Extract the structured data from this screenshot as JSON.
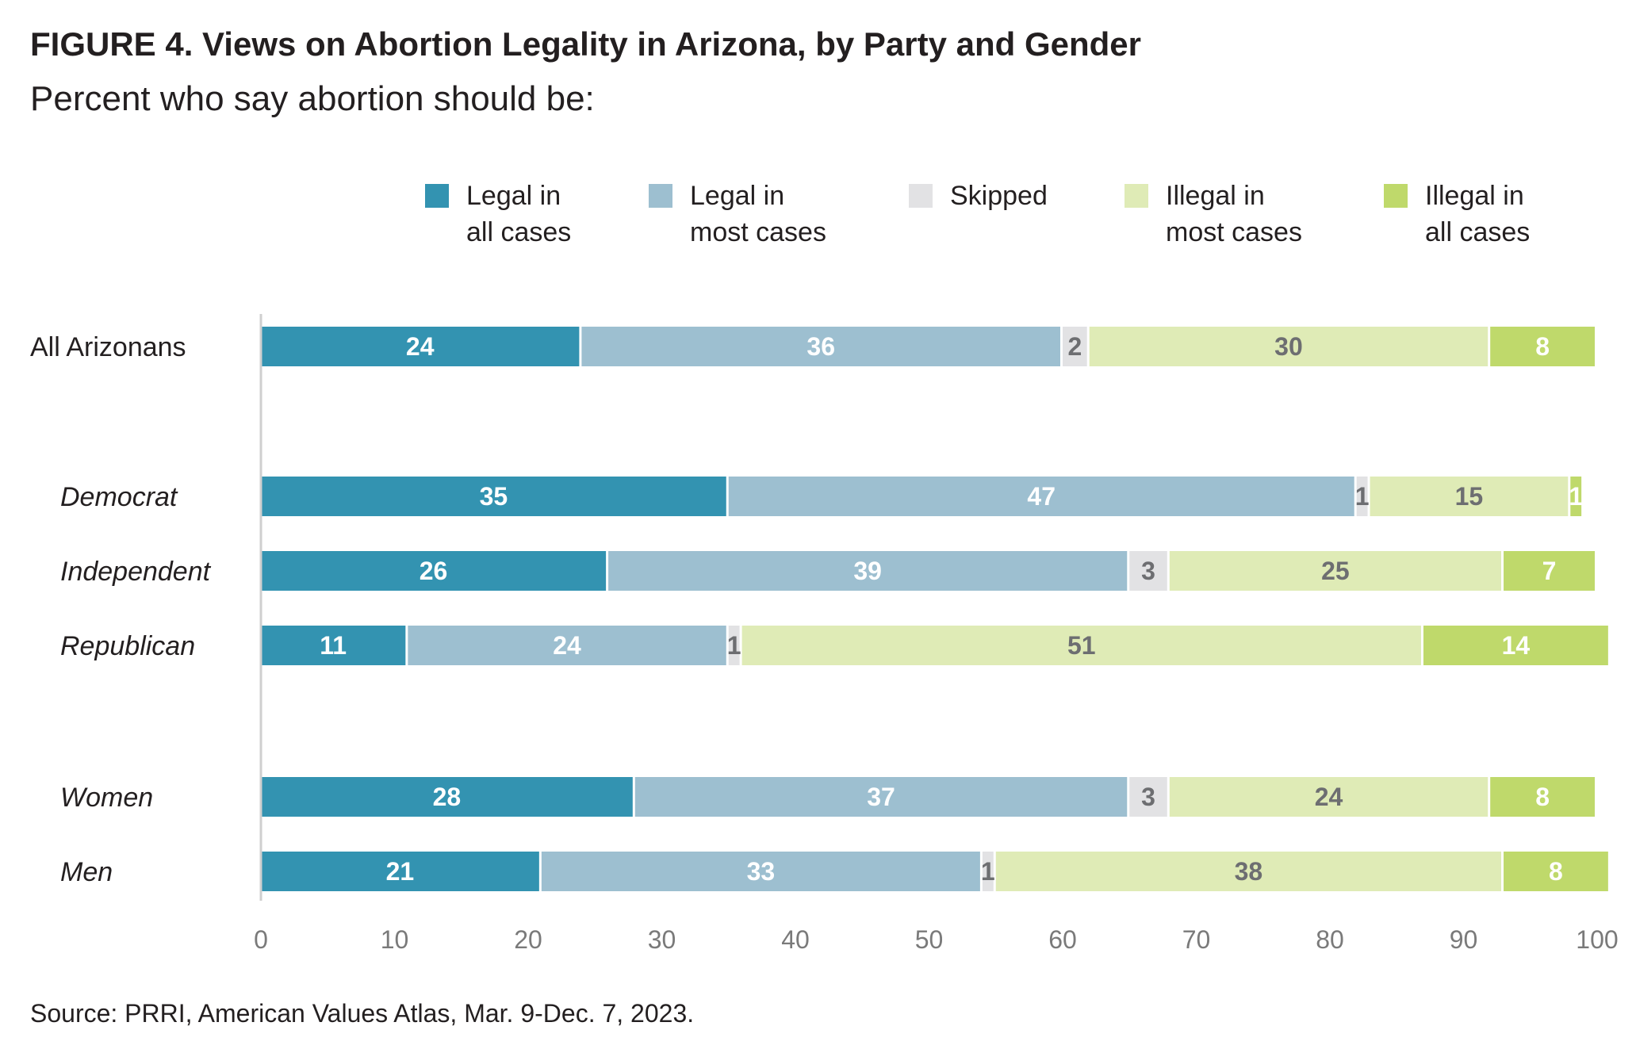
{
  "title": "FIGURE 4. Views on Abortion Legality in Arizona, by Party and Gender",
  "subtitle": "Percent who say abortion should be:",
  "source": "Source: PRRI, American Values Atlas, Mar. 9-Dec. 7, 2023.",
  "chart_data": {
    "type": "bar",
    "orientation": "horizontal",
    "stacked": true,
    "legend_position": "top",
    "xlim": [
      0,
      100
    ],
    "x_ticks": [
      "0",
      "10",
      "20",
      "30",
      "40",
      "50",
      "60",
      "70",
      "80",
      "90",
      "100"
    ],
    "categories": [
      "All Arizonans",
      "Democrat",
      "Independent",
      "Republican",
      "Women",
      "Men"
    ],
    "italic_categories": [
      "Democrat",
      "Independent",
      "Republican",
      "Women",
      "Men"
    ],
    "series": [
      {
        "name": "Legal in all cases",
        "legend_lines": [
          "Legal in",
          "all cases"
        ],
        "color": "#3393b1",
        "label_color": "#ffffff",
        "values": [
          24,
          35,
          26,
          11,
          28,
          21
        ]
      },
      {
        "name": "Legal in most cases",
        "legend_lines": [
          "Legal in",
          "most cases"
        ],
        "color": "#9dbfd0",
        "label_color": "#ffffff",
        "values": [
          36,
          47,
          39,
          24,
          37,
          33
        ]
      },
      {
        "name": "Skipped",
        "legend_lines": [
          "Skipped"
        ],
        "color": "#e2e2e4",
        "label_color": "#6d6e71",
        "values": [
          2,
          1,
          3,
          1,
          3,
          1
        ]
      },
      {
        "name": "Illegal in most cases",
        "legend_lines": [
          "Illegal in",
          "most cases"
        ],
        "color": "#dfebb6",
        "label_color": "#6d6e71",
        "values": [
          30,
          15,
          25,
          51,
          24,
          38
        ]
      },
      {
        "name": "Illegal in all cases",
        "legend_lines": [
          "Illegal in",
          "all cases"
        ],
        "color": "#bfd96b",
        "label_color": "#ffffff",
        "values": [
          8,
          1,
          7,
          14,
          8,
          8
        ]
      }
    ]
  }
}
